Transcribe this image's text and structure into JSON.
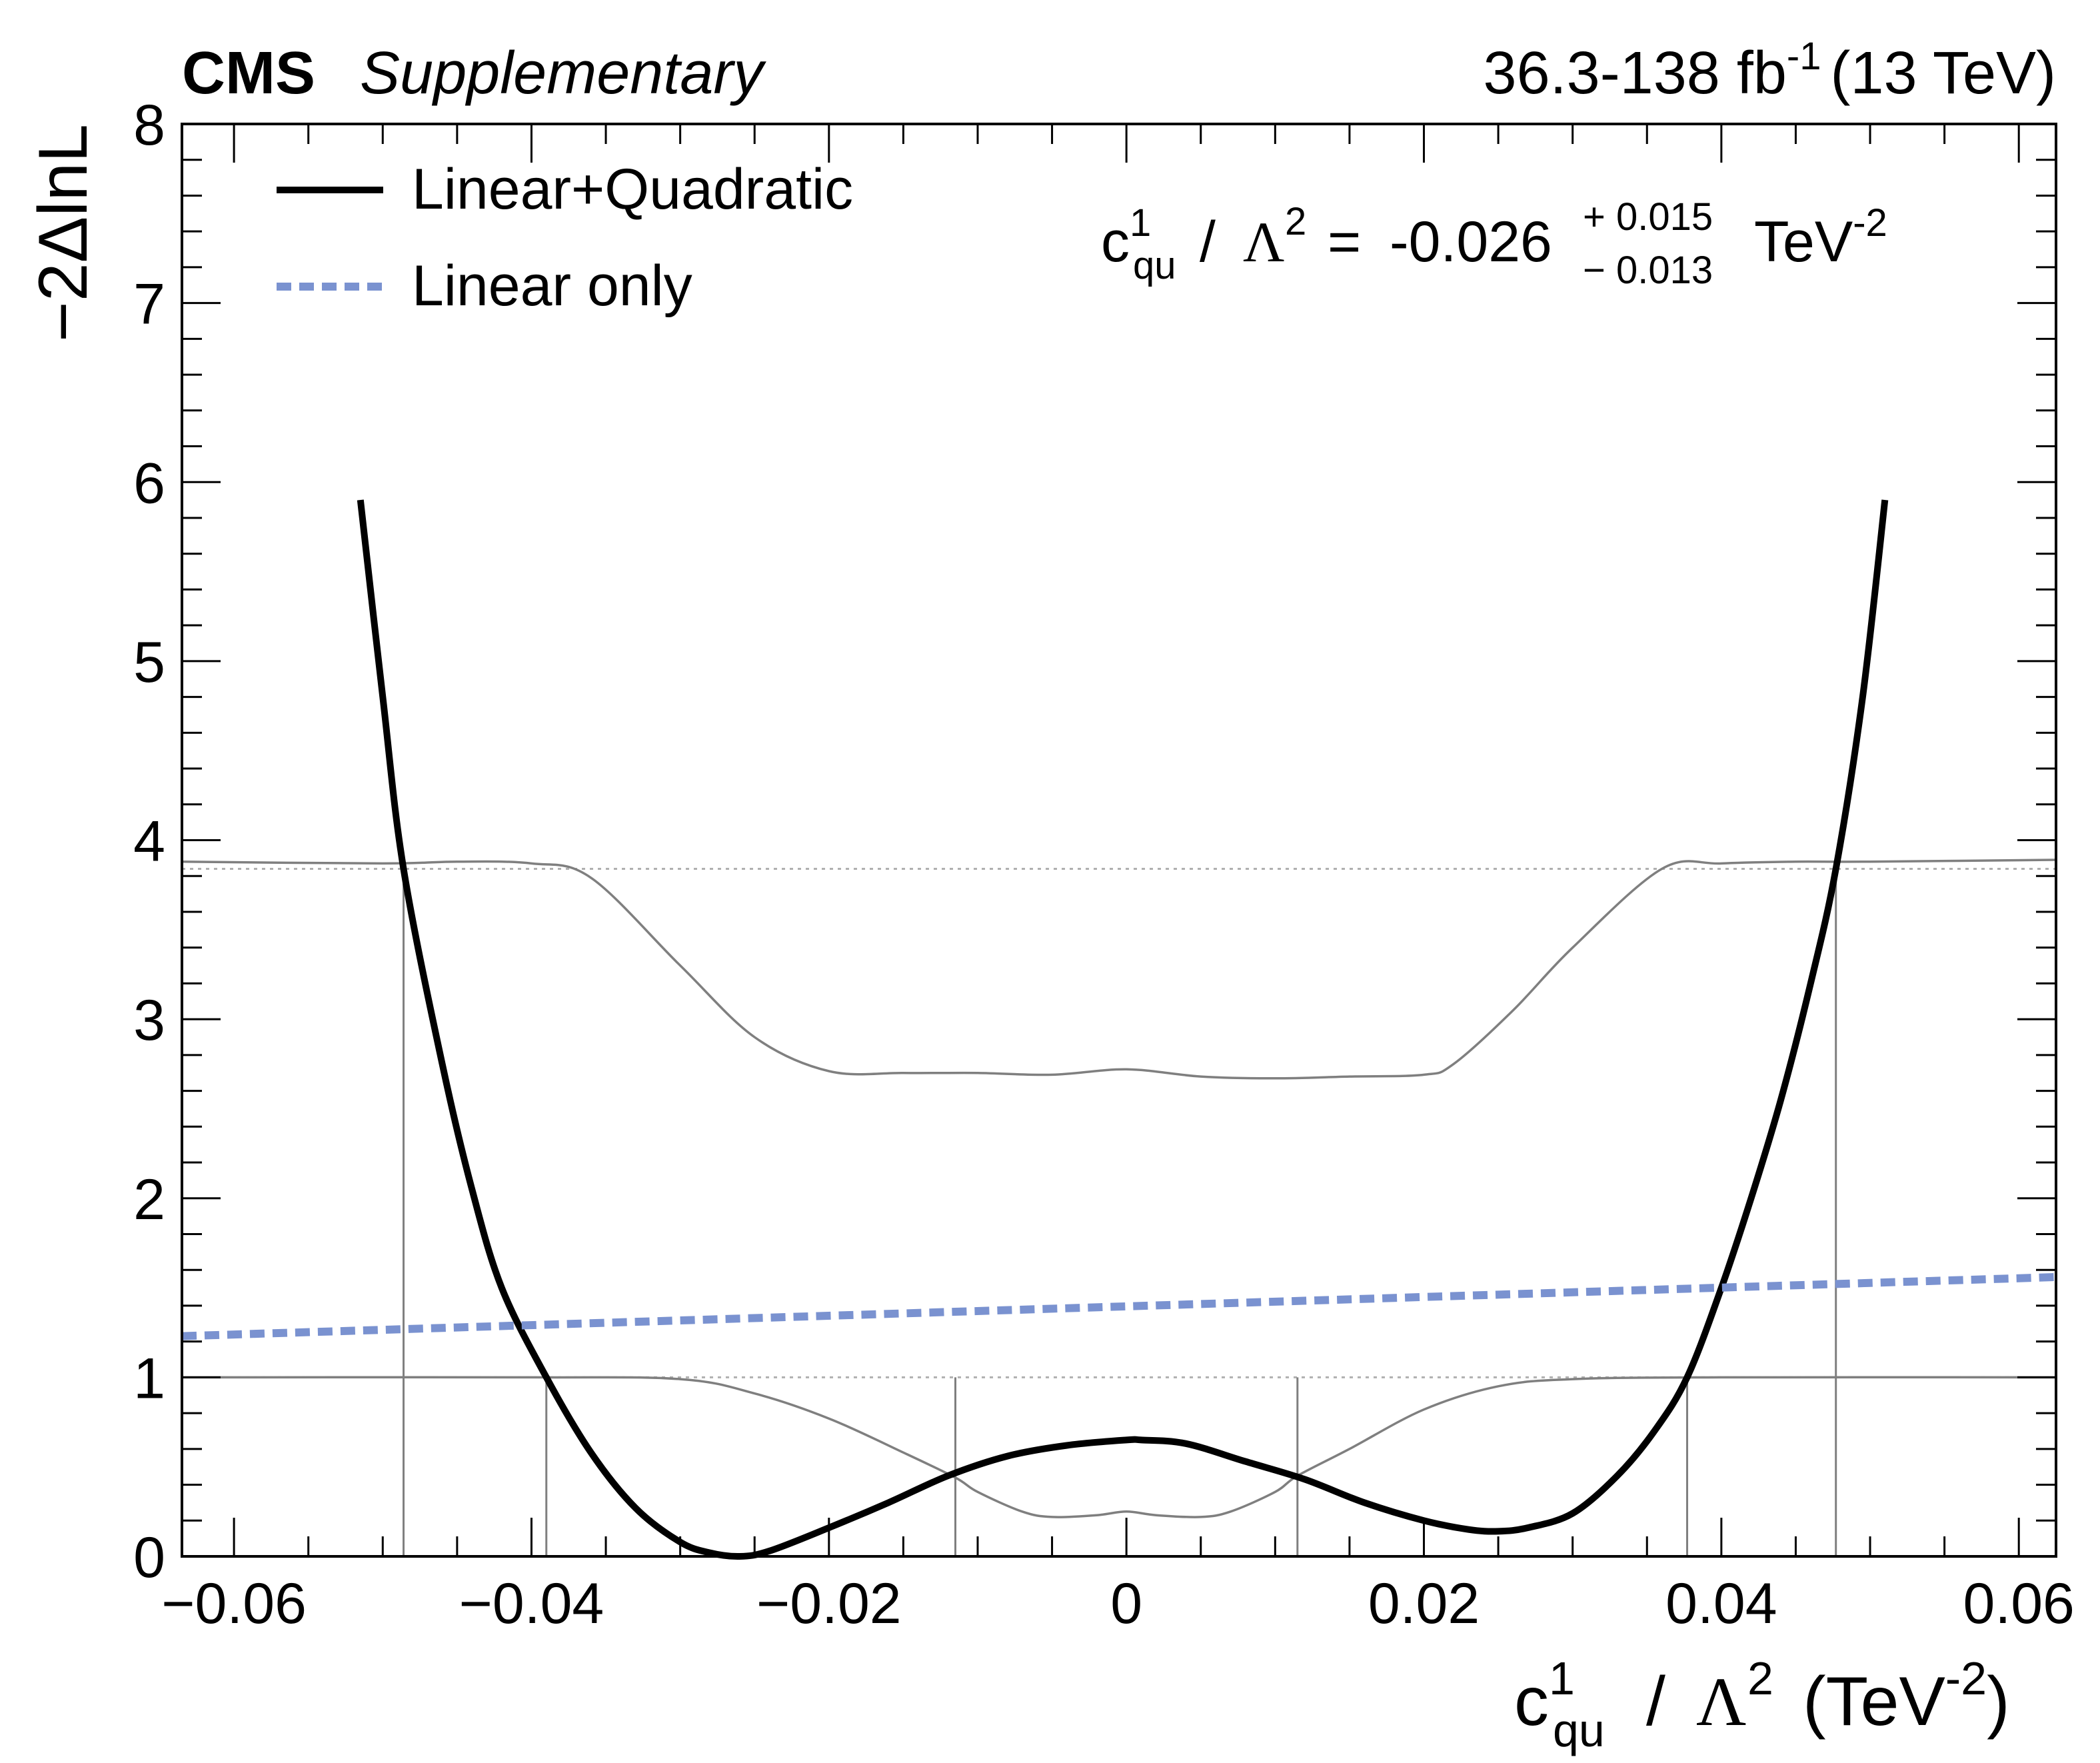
{
  "header": {
    "experiment": "CMS",
    "tag": "Supplementary",
    "lumi_value": "36.3-138 fb",
    "lumi_exp": "-1",
    "energy": "(13 TeV)"
  },
  "legend_labels": {
    "quad": "Linear+Quadratic",
    "lin": "Linear only"
  },
  "result": {
    "c": "c",
    "sup": "1",
    "sub": "qu",
    "slash": "/",
    "lambda": "Λ",
    "lambda_exp": "2",
    "equals": "=",
    "value": "-0.026",
    "err_up": "+ 0.015",
    "err_down": "− 0.013",
    "unit": "TeV",
    "unit_exp": "-2"
  },
  "axis_titles": {
    "y": "−2ΔlnL",
    "x_c": "c",
    "x_sup": "1",
    "x_sub": "qu",
    "x_slash": "/",
    "x_lambda": "Λ",
    "x_lambda_exp": "2",
    "x_open": "(TeV",
    "x_exp": "-2",
    "x_close": ")"
  },
  "colors": {
    "quad": "#000000",
    "lin": "#7a92d0",
    "band": "#7f7f7f",
    "ref": "#b0b0b0"
  },
  "chart_data": {
    "type": "line",
    "xlim": [
      -0.0635,
      0.0625
    ],
    "ylim": [
      0,
      8
    ],
    "xticks": [
      {
        "v": -0.06,
        "label": "−0.06"
      },
      {
        "v": -0.04,
        "label": "−0.04"
      },
      {
        "v": -0.02,
        "label": "−0.02"
      },
      {
        "v": 0,
        "label": "0"
      },
      {
        "v": 0.02,
        "label": "0.02"
      },
      {
        "v": 0.04,
        "label": "0.04"
      },
      {
        "v": 0.06,
        "label": "0.06"
      }
    ],
    "yticks": [
      {
        "v": 0,
        "label": "0"
      },
      {
        "v": 1,
        "label": "1"
      },
      {
        "v": 2,
        "label": "2"
      },
      {
        "v": 3,
        "label": "3"
      },
      {
        "v": 4,
        "label": "4"
      },
      {
        "v": 5,
        "label": "5"
      },
      {
        "v": 6,
        "label": "6"
      },
      {
        "v": 7,
        "label": "7"
      },
      {
        "v": 8,
        "label": "8"
      }
    ],
    "legend_position": "top-left",
    "grid": false,
    "reference_lines": [
      1,
      3.84
    ],
    "crossings_68": [
      -0.039,
      -0.0115,
      0.0115,
      0.0377
    ],
    "crossings_95": [
      -0.0486,
      0.0477
    ],
    "series": [
      {
        "name": "Linear+Quadratic",
        "style": "solid",
        "x": [
          -0.0515,
          -0.05,
          -0.0486,
          -0.046,
          -0.044,
          -0.042,
          -0.039,
          -0.036,
          -0.033,
          -0.03,
          -0.028,
          -0.026,
          -0.024,
          -0.02,
          -0.016,
          -0.012,
          -0.008,
          -0.004,
          0,
          0.001,
          0.004,
          0.008,
          0.012,
          0.016,
          0.02,
          0.023,
          0.025,
          0.027,
          0.03,
          0.033,
          0.0355,
          0.0377,
          0.04,
          0.042,
          0.044,
          0.046,
          0.0477,
          0.0495,
          0.051
        ],
        "y": [
          5.9,
          4.8,
          3.84,
          2.75,
          2.05,
          1.5,
          1.0,
          0.58,
          0.27,
          0.08,
          0.02,
          0.0,
          0.03,
          0.16,
          0.3,
          0.45,
          0.56,
          0.62,
          0.65,
          0.65,
          0.63,
          0.53,
          0.43,
          0.3,
          0.2,
          0.15,
          0.14,
          0.16,
          0.24,
          0.45,
          0.7,
          1.0,
          1.5,
          2.0,
          2.55,
          3.2,
          3.84,
          4.8,
          5.9
        ]
      },
      {
        "name": "Linear only",
        "style": "dashed",
        "x": [
          -0.0635,
          0.0625
        ],
        "y": [
          1.23,
          1.56
        ]
      },
      {
        "style": "thin",
        "x": [
          -0.0635,
          -0.05,
          -0.045,
          -0.04,
          -0.036,
          -0.03,
          -0.025,
          -0.02,
          -0.015,
          -0.01,
          -0.005,
          0,
          0.005,
          0.01,
          0.015,
          0.02,
          0.022,
          0.026,
          0.03,
          0.036,
          0.04,
          0.045,
          0.05,
          0.0625
        ],
        "y": [
          3.88,
          3.87,
          3.88,
          3.87,
          3.79,
          3.3,
          2.9,
          2.71,
          2.7,
          2.7,
          2.69,
          2.72,
          2.68,
          2.67,
          2.68,
          2.69,
          2.75,
          3.05,
          3.4,
          3.84,
          3.87,
          3.88,
          3.88,
          3.89
        ]
      },
      {
        "style": "thin",
        "x": [
          -0.0635,
          -0.04,
          -0.03,
          -0.025,
          -0.02,
          -0.015,
          -0.0115,
          -0.01,
          -0.007,
          -0.005,
          -0.002,
          0,
          0.002,
          0.005,
          0.007,
          0.01,
          0.0115,
          0.015,
          0.02,
          0.025,
          0.03,
          0.04,
          0.0625
        ],
        "y": [
          1.0,
          1.0,
          0.99,
          0.91,
          0.77,
          0.58,
          0.44,
          0.36,
          0.25,
          0.22,
          0.23,
          0.25,
          0.23,
          0.22,
          0.25,
          0.36,
          0.45,
          0.6,
          0.82,
          0.95,
          0.99,
          1.0,
          1.0
        ]
      }
    ]
  }
}
